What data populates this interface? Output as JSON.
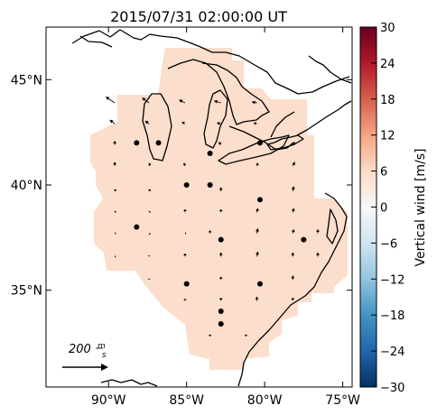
{
  "title": "2015/07/31 02:00:00 UT",
  "x_axis": {
    "tick_labels": [
      "90°W",
      "85°W",
      "80°W",
      "75°W"
    ],
    "tick_values": [
      -90,
      -85,
      -80,
      -75
    ],
    "range": [
      -94,
      -74.4
    ]
  },
  "y_axis": {
    "tick_labels": [
      "35°N",
      "40°N",
      "45°N"
    ],
    "tick_values": [
      35,
      40,
      45
    ],
    "range": [
      30.4,
      47.5
    ]
  },
  "colorbar": {
    "label": "Vertical wind [m/s]",
    "tick_labels": [
      "30",
      "24",
      "18",
      "12",
      "6",
      "0",
      "−6",
      "−12",
      "−18",
      "−24",
      "−30"
    ],
    "range": [
      -30,
      30
    ],
    "colormap": "RdBu_r",
    "stops": [
      "#67001f",
      "#b2182b",
      "#d6604d",
      "#f4a582",
      "#fddbc7",
      "#f7f7f7",
      "#d1e5f0",
      "#92c5de",
      "#4393c3",
      "#2166ac",
      "#053061"
    ]
  },
  "field_color": "#fbdecb",
  "reference_arrow": {
    "label": "200",
    "unit_numerator": "m",
    "unit_denominator": "s",
    "value": 200
  },
  "stations": [
    {
      "lon": -88.2,
      "lat": 42.0
    },
    {
      "lon": -86.8,
      "lat": 42.0
    },
    {
      "lon": -83.5,
      "lat": 41.5
    },
    {
      "lon": -80.3,
      "lat": 42.0
    },
    {
      "lon": -85.0,
      "lat": 40.0
    },
    {
      "lon": -83.5,
      "lat": 40.0
    },
    {
      "lon": -80.3,
      "lat": 39.3
    },
    {
      "lon": -88.2,
      "lat": 38.0
    },
    {
      "lon": -82.8,
      "lat": 37.4
    },
    {
      "lon": -77.5,
      "lat": 37.4
    },
    {
      "lon": -85.0,
      "lat": 35.3
    },
    {
      "lon": -80.3,
      "lat": 35.3
    },
    {
      "lon": -82.8,
      "lat": 34.0
    },
    {
      "lon": -82.8,
      "lat": 33.4
    }
  ],
  "wind_vectors": [
    {
      "lon": -89.6,
      "lat": 43.9,
      "u": -9,
      "v": 6
    },
    {
      "lon": -87.4,
      "lat": 43.9,
      "u": -7,
      "v": 5
    },
    {
      "lon": -85.1,
      "lat": 43.9,
      "u": -6,
      "v": 3
    },
    {
      "lon": -82.8,
      "lat": 43.9,
      "u": -7,
      "v": 2
    },
    {
      "lon": -80.5,
      "lat": 43.9,
      "u": -5,
      "v": 1
    },
    {
      "lon": -89.6,
      "lat": 42.9,
      "u": -5,
      "v": 4
    },
    {
      "lon": -87.4,
      "lat": 42.9,
      "u": -4,
      "v": 3
    },
    {
      "lon": -85.1,
      "lat": 42.9,
      "u": -3,
      "v": 2
    },
    {
      "lon": -82.8,
      "lat": 42.9,
      "u": -4,
      "v": 1
    },
    {
      "lon": -80.5,
      "lat": 42.9,
      "u": -3,
      "v": 1
    },
    {
      "lon": -89.6,
      "lat": 41.9,
      "u": 0,
      "v": 4
    },
    {
      "lon": -82.8,
      "lat": 41.9,
      "u": -2,
      "v": 3
    },
    {
      "lon": -78.2,
      "lat": 41.9,
      "u": 2,
      "v": 3
    },
    {
      "lon": -89.6,
      "lat": 40.9,
      "u": 0,
      "v": 4
    },
    {
      "lon": -87.4,
      "lat": 40.9,
      "u": 1,
      "v": 3
    },
    {
      "lon": -85.1,
      "lat": 40.9,
      "u": -1,
      "v": 3
    },
    {
      "lon": -80.5,
      "lat": 40.9,
      "u": 1,
      "v": 3
    },
    {
      "lon": -78.2,
      "lat": 40.9,
      "u": 2,
      "v": 4
    },
    {
      "lon": -89.6,
      "lat": 39.7,
      "u": 1,
      "v": 2
    },
    {
      "lon": -87.4,
      "lat": 39.7,
      "u": 1,
      "v": 2
    },
    {
      "lon": -82.8,
      "lat": 39.7,
      "u": 0,
      "v": 4
    },
    {
      "lon": -78.2,
      "lat": 39.7,
      "u": 1,
      "v": 5
    },
    {
      "lon": -89.6,
      "lat": 38.7,
      "u": 1,
      "v": 1
    },
    {
      "lon": -87.4,
      "lat": 38.7,
      "u": 1,
      "v": 1
    },
    {
      "lon": -85.1,
      "lat": 38.7,
      "u": 0,
      "v": 3
    },
    {
      "lon": -82.8,
      "lat": 38.7,
      "u": 0,
      "v": 3
    },
    {
      "lon": -80.5,
      "lat": 38.7,
      "u": 1,
      "v": 4
    },
    {
      "lon": -78.2,
      "lat": 38.7,
      "u": 1,
      "v": 4
    },
    {
      "lon": -89.6,
      "lat": 37.7,
      "u": 1,
      "v": 0
    },
    {
      "lon": -87.4,
      "lat": 37.7,
      "u": 1,
      "v": -1
    },
    {
      "lon": -85.1,
      "lat": 37.7,
      "u": 1,
      "v": 0
    },
    {
      "lon": -83.5,
      "lat": 37.7,
      "u": 0,
      "v": 3
    },
    {
      "lon": -80.5,
      "lat": 37.7,
      "u": 1,
      "v": 5
    },
    {
      "lon": -78.2,
      "lat": 37.7,
      "u": 1,
      "v": 4
    },
    {
      "lon": -76.6,
      "lat": 37.7,
      "u": 0,
      "v": 4
    },
    {
      "lon": -89.6,
      "lat": 36.6,
      "u": 1,
      "v": 0
    },
    {
      "lon": -87.4,
      "lat": 36.6,
      "u": 0,
      "v": 1
    },
    {
      "lon": -85.1,
      "lat": 36.6,
      "u": 0,
      "v": 3
    },
    {
      "lon": -82.8,
      "lat": 36.6,
      "u": 0,
      "v": 4
    },
    {
      "lon": -80.5,
      "lat": 36.6,
      "u": 1,
      "v": 5
    },
    {
      "lon": -78.2,
      "lat": 36.6,
      "u": 0,
      "v": 4
    },
    {
      "lon": -76.6,
      "lat": 36.6,
      "u": 0,
      "v": 4
    },
    {
      "lon": -87.4,
      "lat": 35.5,
      "u": 0,
      "v": 1
    },
    {
      "lon": -82.8,
      "lat": 35.5,
      "u": 0,
      "v": 3
    },
    {
      "lon": -78.2,
      "lat": 35.5,
      "u": 0,
      "v": 4
    },
    {
      "lon": -85.1,
      "lat": 34.5,
      "u": 0,
      "v": 2
    },
    {
      "lon": -82.8,
      "lat": 34.5,
      "u": 0,
      "v": 3
    },
    {
      "lon": -80.5,
      "lat": 34.5,
      "u": 0,
      "v": 4
    },
    {
      "lon": -78.2,
      "lat": 34.5,
      "u": 0,
      "v": 3
    },
    {
      "lon": -83.5,
      "lat": 32.8,
      "u": 0,
      "v": 2
    },
    {
      "lon": -81.2,
      "lat": 32.8,
      "u": 0,
      "v": 2
    }
  ]
}
